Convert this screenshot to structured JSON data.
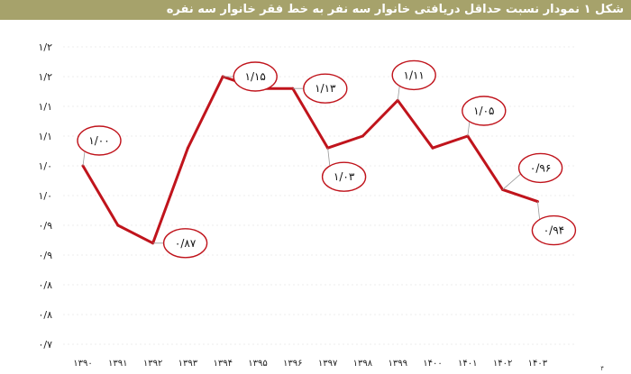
{
  "title": "شکل ۱ نمودار نسبت حداقل دریافتی خانوار سه نفر به خط فقر خانوار سه نفره",
  "colors": {
    "title_bar": "#a6a26b",
    "line": "#c0141c",
    "callout": "#c0141c",
    "grid": "#d9d9d9"
  },
  "footnote": "۴",
  "chart_data": {
    "type": "line",
    "title": "شکل ۱ نمودار نسبت حداقل دریافتی خانوار سه نفر به خط فقر خانوار سه نفره",
    "xlabel": "",
    "ylabel": "",
    "ylim": [
      0.7,
      1.2
    ],
    "grid": "horizontal",
    "yticks": [
      "۰/۷",
      "۰/۸",
      "۰/۸",
      "۰/۹",
      "۰/۹",
      "۱/۰",
      "۱/۰",
      "۱/۱",
      "۱/۱",
      "۱/۲",
      "۱/۲"
    ],
    "categories": [
      "۱۳۹۰",
      "۱۳۹۱",
      "۱۳۹۲",
      "۱۳۹۳",
      "۱۳۹۴",
      "۱۳۹۵",
      "۱۳۹۶",
      "۱۳۹۷",
      "۱۳۹۸",
      "۱۳۹۹",
      "۱۴۰۰",
      "۱۴۰۱",
      "۱۴۰۲",
      "۱۴۰۳"
    ],
    "values": [
      1.0,
      0.9,
      0.87,
      1.03,
      1.15,
      1.13,
      1.13,
      1.03,
      1.05,
      1.11,
      1.03,
      1.05,
      0.96,
      0.94
    ],
    "data_labels": [
      {
        "index": 0,
        "text": "۱/۰۰",
        "side": "above"
      },
      {
        "index": 2,
        "text": "۰/۸۷",
        "side": "right"
      },
      {
        "index": 4,
        "text": "۱/۱۵",
        "side": "right"
      },
      {
        "index": 6,
        "text": "۱/۱۳",
        "side": "right"
      },
      {
        "index": 7,
        "text": "۱/۰۳",
        "side": "below"
      },
      {
        "index": 9,
        "text": "۱/۱۱",
        "side": "above"
      },
      {
        "index": 11,
        "text": "۱/۰۵",
        "side": "above"
      },
      {
        "index": 12,
        "text": "۰/۹۶",
        "side": "upright"
      },
      {
        "index": 13,
        "text": "۰/۹۴",
        "side": "below"
      }
    ]
  }
}
